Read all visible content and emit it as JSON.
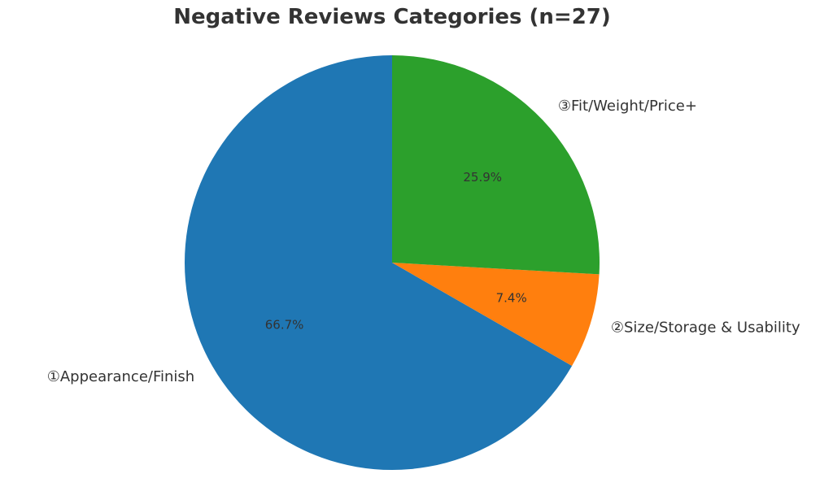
{
  "chart_data": {
    "type": "pie",
    "title": "Negative Reviews Categories (n=27)",
    "categories": [
      "①Appearance/Finish",
      "②Size/Storage & Usability",
      "③Fit/Weight/Price+"
    ],
    "values": [
      66.7,
      7.4,
      25.9
    ],
    "value_labels": [
      "66.7%",
      "7.4%",
      "25.9%"
    ],
    "colors": [
      "#1f77b4",
      "#ff7f0e",
      "#2ca02c"
    ],
    "start_angle_deg": 90,
    "direction": "counterclockwise",
    "legend": "none"
  }
}
